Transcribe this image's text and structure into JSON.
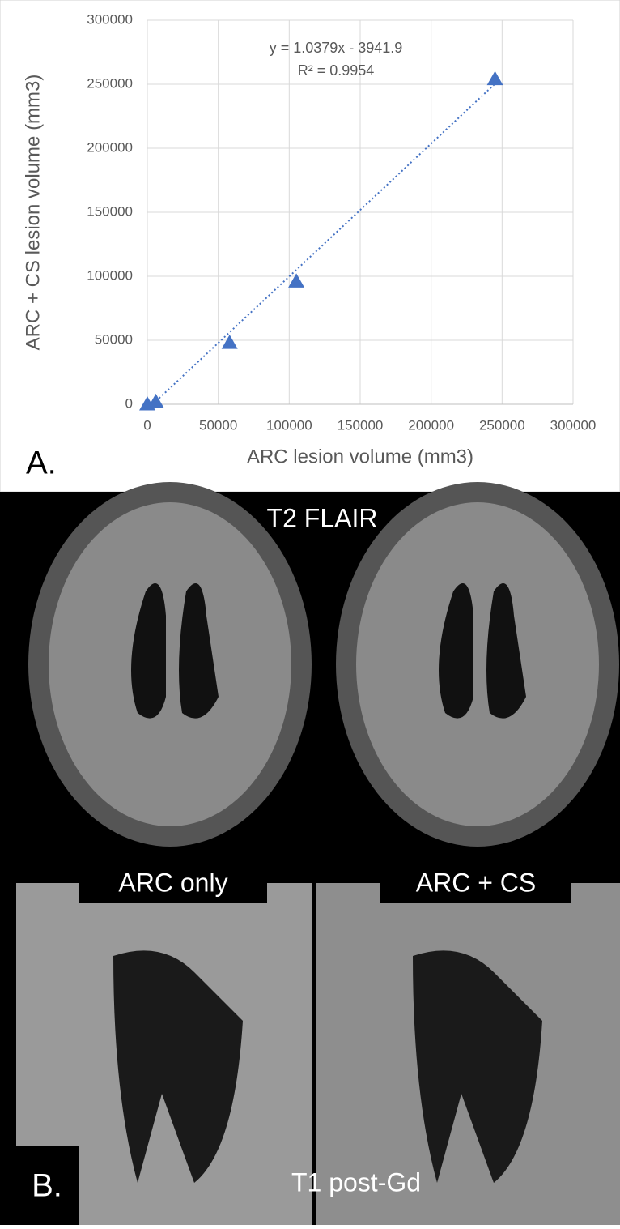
{
  "chart_data": {
    "type": "scatter",
    "x_label": "ARC lesion volume (mm3)",
    "y_label": "ARC + CS lesion volume (mm3)",
    "annotations": [
      "y = 1.0379x - 3941.9",
      "R² = 0.9954"
    ],
    "x": [
      0,
      6000,
      58000,
      105000,
      245000
    ],
    "values": [
      0,
      2000,
      48000,
      96000,
      254000
    ],
    "color": "#4472c4",
    "trendline": {
      "x": [
        0,
        245000
      ],
      "y": [
        -3942,
        250344
      ]
    },
    "xlim": [
      0,
      300000
    ],
    "xticks": [
      0,
      50000,
      100000,
      150000,
      200000,
      250000,
      300000
    ],
    "ylim": [
      0,
      300000
    ],
    "yticks": [
      0,
      50000,
      100000,
      150000,
      200000,
      250000,
      300000
    ],
    "grid": true
  },
  "figure": {
    "panel_a_label": "A.",
    "panel_b_label": "B.",
    "top_caption": "T2 FLAIR",
    "left_caption": "ARC only",
    "right_caption": "ARC + CS",
    "bottom_caption": "T1 post-Gd"
  }
}
